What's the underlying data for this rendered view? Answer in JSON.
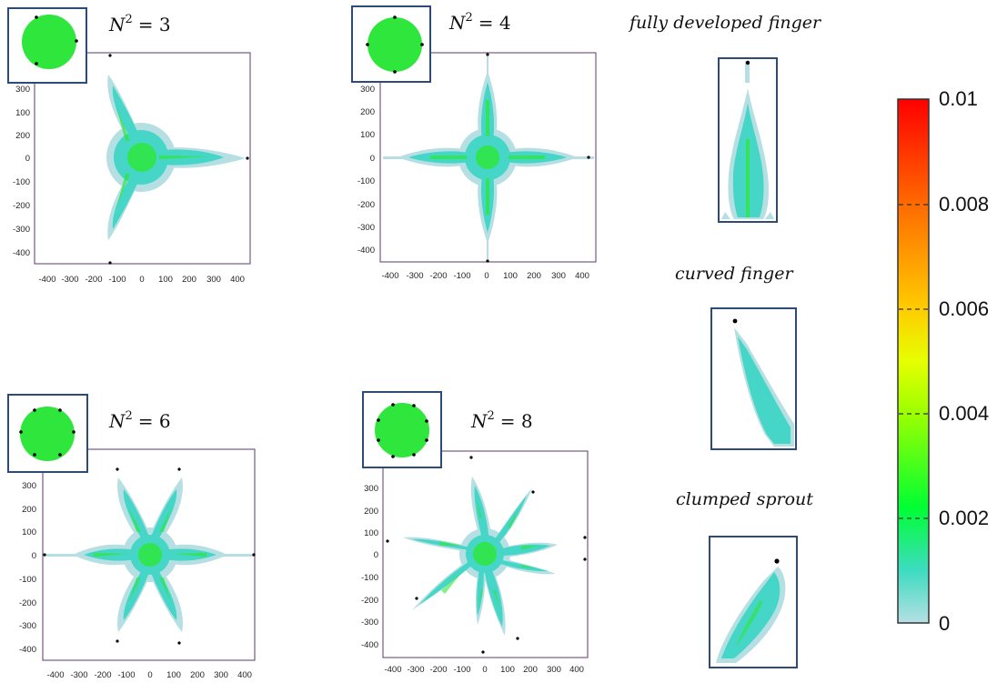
{
  "colors": {
    "halo": "#b6dfe3",
    "cyan": "#45d6c7",
    "green": "#2ee63c",
    "inset_green": "#2ee63c",
    "frame": "#6a4a78",
    "inset_frame": "#2e4a78"
  },
  "panels": [
    {
      "id": "p3",
      "label_lhs": "N",
      "label_exp": "2",
      "label_rhs": "= 3",
      "xticks": [
        "-400",
        "-300",
        "-200",
        "-100",
        "0",
        "100",
        "200",
        "300",
        "400"
      ],
      "yticks": [
        "300",
        "200",
        "100",
        "0",
        "-100",
        "-200",
        "-300",
        "-400"
      ]
    },
    {
      "id": "p4",
      "label_lhs": "N",
      "label_exp": "2",
      "label_rhs": "= 4",
      "xticks": [
        "-400",
        "-300",
        "-200",
        "-100",
        "0",
        "100",
        "200",
        "300",
        "400"
      ],
      "yticks": [
        "300",
        "200",
        "100",
        "0",
        "-100",
        "-200",
        "-300",
        "-400"
      ]
    },
    {
      "id": "p6",
      "label_lhs": "N",
      "label_exp": "2",
      "label_rhs": "= 6",
      "xticks": [
        "-400",
        "-300",
        "-200",
        "-100",
        "0",
        "100",
        "200",
        "300",
        "400"
      ],
      "yticks": [
        "300",
        "200",
        "100",
        "0",
        "-100",
        "-200",
        "-300",
        "-400"
      ]
    },
    {
      "id": "p8",
      "label_lhs": "N",
      "label_exp": "2",
      "label_rhs": "= 8",
      "xticks": [
        "-400",
        "-300",
        "-200",
        "-100",
        "0",
        "100",
        "200",
        "300",
        "400"
      ],
      "yticks": [
        "300",
        "200",
        "100",
        "0",
        "-100",
        "-200",
        "-300",
        "-400"
      ]
    }
  ],
  "side": {
    "finger_title": "fully developed finger",
    "curved_title": "curved finger",
    "sprout_title": "clumped sprout"
  },
  "colorbar": {
    "labels": [
      "0.01",
      "0.008",
      "0.006",
      "0.004",
      "0.002",
      "0"
    ],
    "stops": [
      "#ff0000",
      "#ff8000",
      "#ffd000",
      "#ffff00",
      "#00ff00",
      "#3ddcc0",
      "#b6dfe3"
    ]
  }
}
